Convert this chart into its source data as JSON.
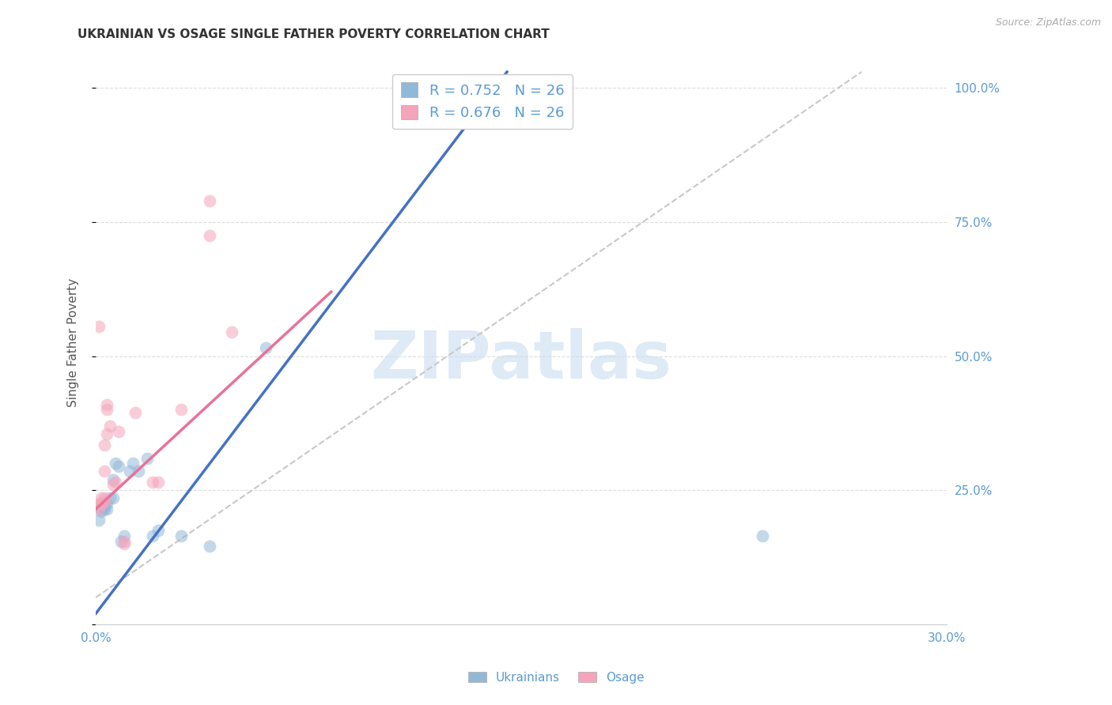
{
  "title": "UKRAINIAN VS OSAGE SINGLE FATHER POVERTY CORRELATION CHART",
  "source": "Source: ZipAtlas.com",
  "ylabel": "Single Father Poverty",
  "y_right_labels": [
    "100.0%",
    "75.0%",
    "50.0%",
    "25.0%"
  ],
  "x_min": 0.0,
  "x_max": 0.3,
  "y_min": 0.0,
  "y_max": 1.05,
  "legend_entries": [
    {
      "label": "R = 0.752   N = 26"
    },
    {
      "label": "R = 0.676   N = 26"
    }
  ],
  "watermark_text": "ZIPatlas",
  "blue_scatter": [
    [
      0.001,
      0.195
    ],
    [
      0.002,
      0.21
    ],
    [
      0.002,
      0.215
    ],
    [
      0.003,
      0.215
    ],
    [
      0.003,
      0.22
    ],
    [
      0.004,
      0.215
    ],
    [
      0.004,
      0.225
    ],
    [
      0.005,
      0.235
    ],
    [
      0.006,
      0.235
    ],
    [
      0.006,
      0.27
    ],
    [
      0.007,
      0.3
    ],
    [
      0.008,
      0.295
    ],
    [
      0.009,
      0.155
    ],
    [
      0.01,
      0.165
    ],
    [
      0.012,
      0.285
    ],
    [
      0.013,
      0.3
    ],
    [
      0.015,
      0.285
    ],
    [
      0.018,
      0.31
    ],
    [
      0.02,
      0.165
    ],
    [
      0.022,
      0.175
    ],
    [
      0.03,
      0.165
    ],
    [
      0.04,
      0.145
    ],
    [
      0.06,
      0.515
    ],
    [
      0.12,
      0.975
    ],
    [
      0.155,
      0.975
    ],
    [
      0.235,
      0.165
    ]
  ],
  "pink_scatter": [
    [
      0.001,
      0.215
    ],
    [
      0.001,
      0.225
    ],
    [
      0.002,
      0.225
    ],
    [
      0.002,
      0.225
    ],
    [
      0.002,
      0.235
    ],
    [
      0.003,
      0.23
    ],
    [
      0.003,
      0.235
    ],
    [
      0.003,
      0.285
    ],
    [
      0.003,
      0.335
    ],
    [
      0.004,
      0.355
    ],
    [
      0.004,
      0.4
    ],
    [
      0.004,
      0.41
    ],
    [
      0.005,
      0.37
    ],
    [
      0.006,
      0.26
    ],
    [
      0.007,
      0.265
    ],
    [
      0.008,
      0.36
    ],
    [
      0.01,
      0.155
    ],
    [
      0.01,
      0.15
    ],
    [
      0.014,
      0.395
    ],
    [
      0.02,
      0.265
    ],
    [
      0.022,
      0.265
    ],
    [
      0.03,
      0.4
    ],
    [
      0.04,
      0.79
    ],
    [
      0.04,
      0.725
    ],
    [
      0.048,
      0.545
    ],
    [
      0.001,
      0.555
    ]
  ],
  "blue_line": [
    [
      0.0,
      0.02
    ],
    [
      0.145,
      1.03
    ]
  ],
  "pink_line": [
    [
      0.0,
      0.215
    ],
    [
      0.083,
      0.62
    ]
  ],
  "ref_line": [
    [
      0.0,
      0.05
    ],
    [
      0.27,
      1.03
    ]
  ],
  "blue_color": "#92b8d8",
  "pink_color": "#f4a5bb",
  "blue_line_color": "#4472c4",
  "pink_line_color": "#e8729a",
  "ref_line_color": "#c8c8c8",
  "axis_label_color": "#5b9bd5",
  "grid_color": "#dddddd",
  "background_color": "#ffffff",
  "title_fontsize": 11,
  "source_fontsize": 9,
  "axis_fontsize": 11,
  "legend_fontsize": 13,
  "scatter_size": 130,
  "scatter_alpha": 0.55
}
